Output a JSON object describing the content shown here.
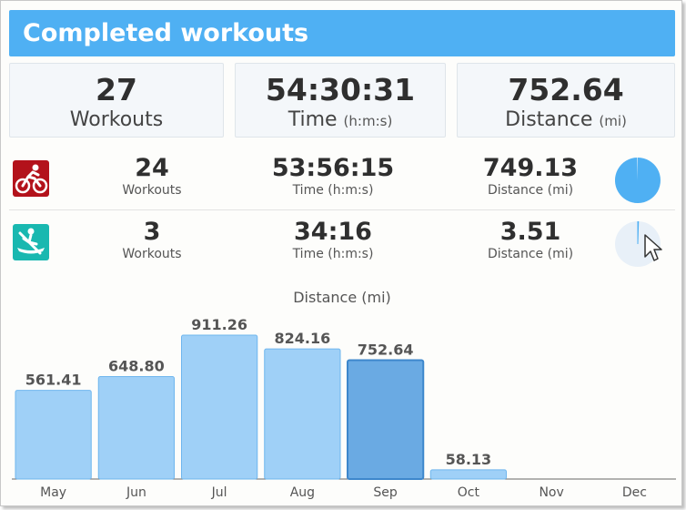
{
  "header": {
    "title": "Completed workouts"
  },
  "summary": {
    "workouts": {
      "value": "27",
      "label": "Workouts"
    },
    "time": {
      "value": "54:30:31",
      "label": "Time",
      "unit": "(h:m:s)"
    },
    "distance": {
      "value": "752.64",
      "label": "Distance",
      "unit": "(mi)"
    }
  },
  "sports": [
    {
      "icon": "cycling-icon",
      "workouts": {
        "value": "24",
        "label": "Workouts"
      },
      "time": {
        "value": "53:56:15",
        "label": "Time (h:m:s)"
      },
      "distance": {
        "value": "749.13",
        "label": "Distance (mi)"
      },
      "share": 0.9953
    },
    {
      "icon": "rowing-icon",
      "workouts": {
        "value": "3",
        "label": "Workouts"
      },
      "time": {
        "value": "34:16",
        "label": "Time (h:m:s)"
      },
      "distance": {
        "value": "3.51",
        "label": "Distance (mi)"
      },
      "share": 0.0047
    }
  ],
  "colors": {
    "header": "#4fb0f3",
    "bar": "#9fd0f7",
    "bar_selected": "#6aaae3",
    "pie_fill": "#4fb0f3",
    "pie_bg": "#e8f0f8",
    "cycling_icon_bg": "#b3121b",
    "rowing_icon_bg": "#19b8b0"
  },
  "chart_data": {
    "type": "bar",
    "title": "Distance (mi)",
    "categories": [
      "May",
      "Jun",
      "Jul",
      "Aug",
      "Sep",
      "Oct",
      "Nov",
      "Dec"
    ],
    "values": [
      561.41,
      648.8,
      911.26,
      824.16,
      752.64,
      58.13,
      null,
      null
    ],
    "value_labels": [
      "561.41",
      "648.80",
      "911.26",
      "824.16",
      "752.64",
      "58.13",
      "",
      ""
    ],
    "selected_category": "Sep",
    "ylim": [
      0,
      911.26
    ],
    "grid": false
  }
}
